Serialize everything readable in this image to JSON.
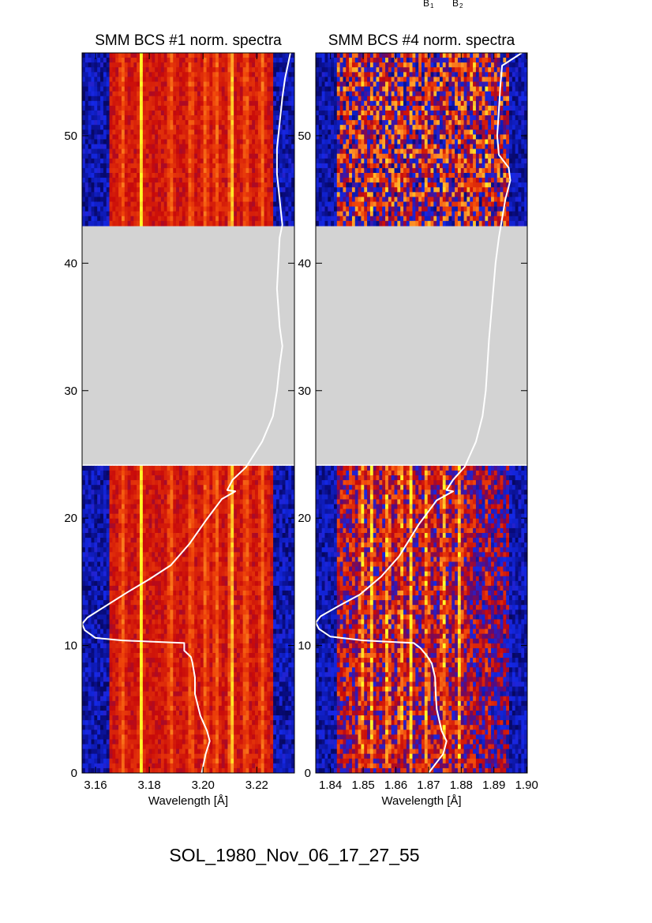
{
  "top_marks": [
    {
      "letter": "B",
      "sub": "1"
    },
    {
      "letter": "B",
      "sub": "2"
    }
  ],
  "footer": "SOL_1980_Nov_06_17_27_55",
  "colors": {
    "data_gap": "#d3d3d3",
    "curve": "#ffffff",
    "spectral_line_core": "#ffff1e",
    "background": "#ffffff"
  },
  "chart_data": [
    {
      "type": "heatmap",
      "title": "SMM BCS #1 norm. spectra",
      "xlabel": "Wavelength [Å]",
      "ylabel": "",
      "xlim": [
        3.155,
        3.234
      ],
      "ylim": [
        0,
        56.5
      ],
      "x_ticks": [
        3.16,
        3.18,
        3.2,
        3.22
      ],
      "x_tick_labels": [
        "3.16",
        "3.18",
        "3.20",
        "3.22"
      ],
      "y_ticks": [
        0,
        10,
        20,
        30,
        40,
        50
      ],
      "y_tick_labels": [
        "0",
        "10",
        "20",
        "30",
        "40",
        "50"
      ],
      "data_gap": [
        24.2,
        42.9
      ],
      "colormap": "blue-red-yellow",
      "bright_lines": [
        3.177,
        3.2105
      ],
      "moderate_lines": [
        3.17,
        3.188,
        3.1955,
        3.201,
        3.205,
        3.216,
        3.222
      ],
      "edge_dark_below": 3.165,
      "edge_dark_above": 3.226,
      "curve_points": [
        [
          3.1995,
          0
        ],
        [
          3.201,
          1.5
        ],
        [
          3.2025,
          2.5
        ],
        [
          3.2015,
          3.3
        ],
        [
          3.199,
          4.5
        ],
        [
          3.197,
          6.2
        ],
        [
          3.197,
          7.5
        ],
        [
          3.196,
          8.7
        ],
        [
          3.1955,
          9.1
        ],
        [
          3.193,
          9.6
        ],
        [
          3.193,
          10.2
        ],
        [
          3.17,
          10.4
        ],
        [
          3.16,
          10.6
        ],
        [
          3.156,
          11.2
        ],
        [
          3.155,
          11.7
        ],
        [
          3.157,
          12.2
        ],
        [
          3.163,
          13.0
        ],
        [
          3.172,
          14.2
        ],
        [
          3.18,
          15.2
        ],
        [
          3.188,
          16.3
        ],
        [
          3.195,
          18.0
        ],
        [
          3.201,
          19.8
        ],
        [
          3.207,
          21.5
        ],
        [
          3.212,
          22.1
        ],
        [
          3.209,
          22.2
        ],
        [
          3.211,
          23.0
        ],
        [
          3.216,
          24.0
        ],
        [
          3.222,
          26.0
        ],
        [
          3.226,
          28.0
        ],
        [
          3.2275,
          30.0
        ],
        [
          3.2285,
          32.0
        ],
        [
          3.2295,
          33.5
        ],
        [
          3.2285,
          35.0
        ],
        [
          3.2275,
          38.0
        ],
        [
          3.2285,
          42.0
        ],
        [
          3.2295,
          43.0
        ],
        [
          3.2285,
          45.0
        ],
        [
          3.2275,
          47.0
        ],
        [
          3.2275,
          49.0
        ],
        [
          3.2285,
          51.0
        ],
        [
          3.2295,
          53.0
        ],
        [
          3.2305,
          54.5
        ],
        [
          3.2325,
          56.5
        ]
      ]
    },
    {
      "type": "heatmap",
      "title": "SMM BCS #4 norm. spectra",
      "xlabel": "Wavelength [Å]",
      "ylabel": "",
      "xlim": [
        1.8355,
        1.9002
      ],
      "ylim": [
        0,
        56.5
      ],
      "x_ticks": [
        1.84,
        1.85,
        1.86,
        1.87,
        1.88,
        1.89,
        1.9
      ],
      "x_tick_labels": [
        "1.84",
        "1.85",
        "1.86",
        "1.87",
        "1.88",
        "1.89",
        "1.90"
      ],
      "y_ticks": [
        0,
        10,
        20,
        30,
        40,
        50
      ],
      "y_tick_labels": [
        "0",
        "10",
        "20",
        "30",
        "40",
        "50"
      ],
      "data_gap": [
        24.2,
        42.9
      ],
      "colormap": "blue-red-yellow",
      "bright_lines": [
        1.8495,
        1.8525,
        1.8575,
        1.8615,
        1.8645,
        1.8695,
        1.8745,
        1.8795
      ],
      "moderate_lines": [
        1.8835,
        1.888
      ],
      "edge_dark_below": 1.842,
      "edge_dark_above": 1.895,
      "curve_points": [
        [
          1.87,
          0
        ],
        [
          1.8745,
          1.5
        ],
        [
          1.8755,
          2.5
        ],
        [
          1.874,
          3.3
        ],
        [
          1.8725,
          5.0
        ],
        [
          1.8722,
          6.2
        ],
        [
          1.872,
          7.5
        ],
        [
          1.871,
          8.6
        ],
        [
          1.8695,
          9.2
        ],
        [
          1.8675,
          9.8
        ],
        [
          1.8655,
          10.2
        ],
        [
          1.85,
          10.4
        ],
        [
          1.84,
          10.7
        ],
        [
          1.8365,
          11.3
        ],
        [
          1.8355,
          11.8
        ],
        [
          1.837,
          12.3
        ],
        [
          1.8425,
          13.1
        ],
        [
          1.849,
          14.0
        ],
        [
          1.8555,
          15.4
        ],
        [
          1.861,
          17.0
        ],
        [
          1.867,
          19.5
        ],
        [
          1.8725,
          21.4
        ],
        [
          1.8775,
          22.1
        ],
        [
          1.8755,
          22.2
        ],
        [
          1.8775,
          23.0
        ],
        [
          1.881,
          24.0
        ],
        [
          1.8845,
          26.0
        ],
        [
          1.8865,
          28.0
        ],
        [
          1.8875,
          30.0
        ],
        [
          1.888,
          32.0
        ],
        [
          1.8885,
          34.0
        ],
        [
          1.8895,
          37.0
        ],
        [
          1.8905,
          40.0
        ],
        [
          1.8915,
          42.0
        ],
        [
          1.8935,
          45.0
        ],
        [
          1.895,
          46.5
        ],
        [
          1.8945,
          47.5
        ],
        [
          1.8915,
          48.5
        ],
        [
          1.891,
          50.0
        ],
        [
          1.8915,
          52.0
        ],
        [
          1.892,
          54.0
        ],
        [
          1.8925,
          55.5
        ],
        [
          1.8985,
          56.5
        ]
      ]
    }
  ]
}
